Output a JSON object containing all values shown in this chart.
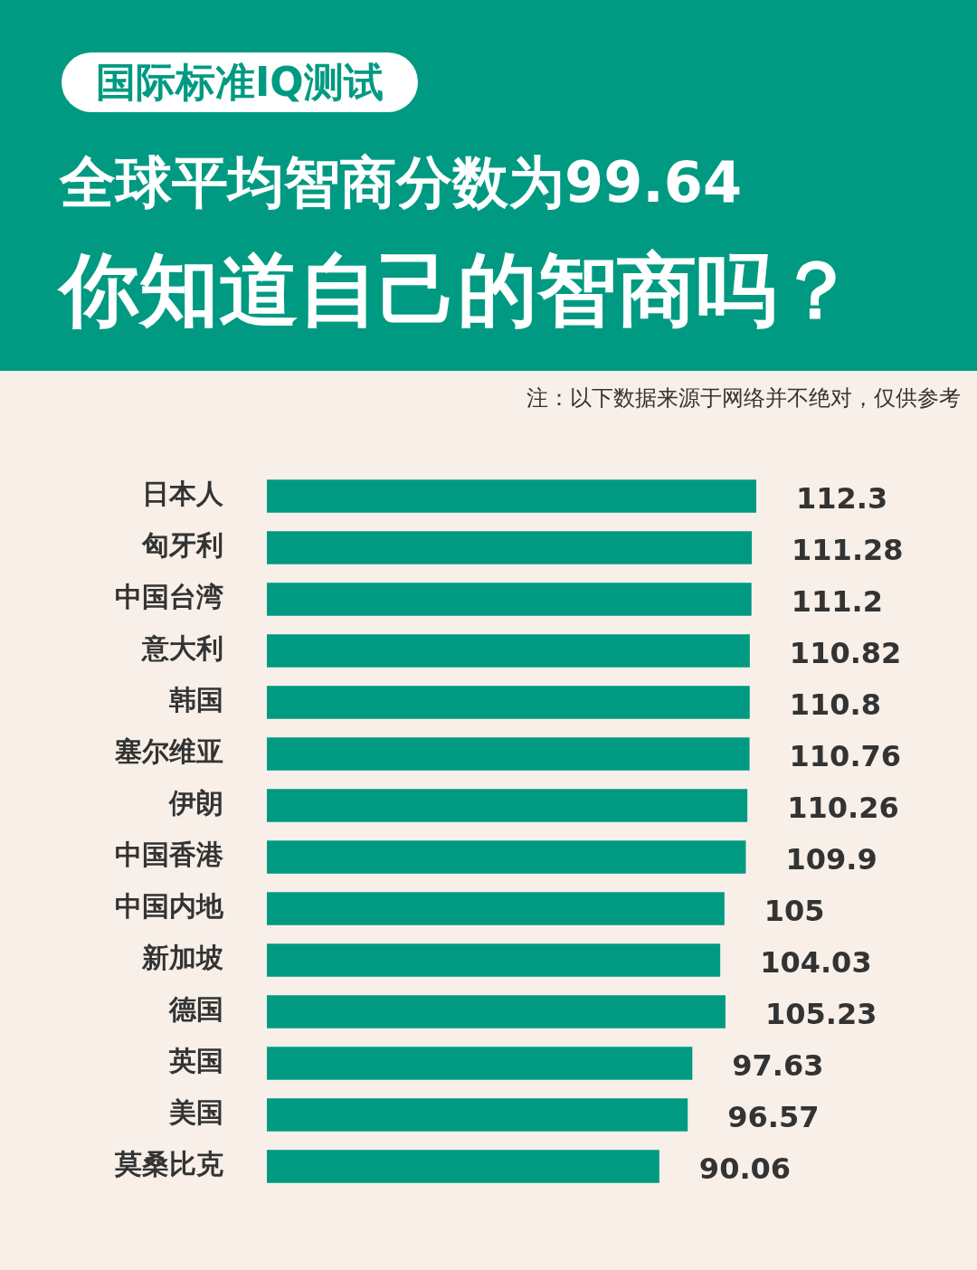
{
  "chart_data": {
    "type": "bar",
    "orientation": "horizontal",
    "title": "全球平均智商分数为99.64",
    "subtitle": "你知道自己的智商吗？",
    "annotations": [
      "国际标准IQ测试",
      "注：以下数据来源于网络并不绝对，仅供参考"
    ],
    "categories": [
      "日本人",
      "匈牙利",
      "中国台湾",
      "意大利",
      "韩国",
      "塞尔维亚",
      "伊朗",
      "中国香港",
      "中国内地",
      "新加坡",
      "德国",
      "英国",
      "美国",
      "莫桑比克"
    ],
    "values": [
      112.3,
      111.28,
      111.2,
      110.82,
      110.8,
      110.76,
      110.26,
      109.9,
      105,
      104.03,
      105.23,
      97.63,
      96.57,
      90.06
    ],
    "color": "#009a82",
    "data_labels": true,
    "grid": false,
    "legend": false
  }
}
